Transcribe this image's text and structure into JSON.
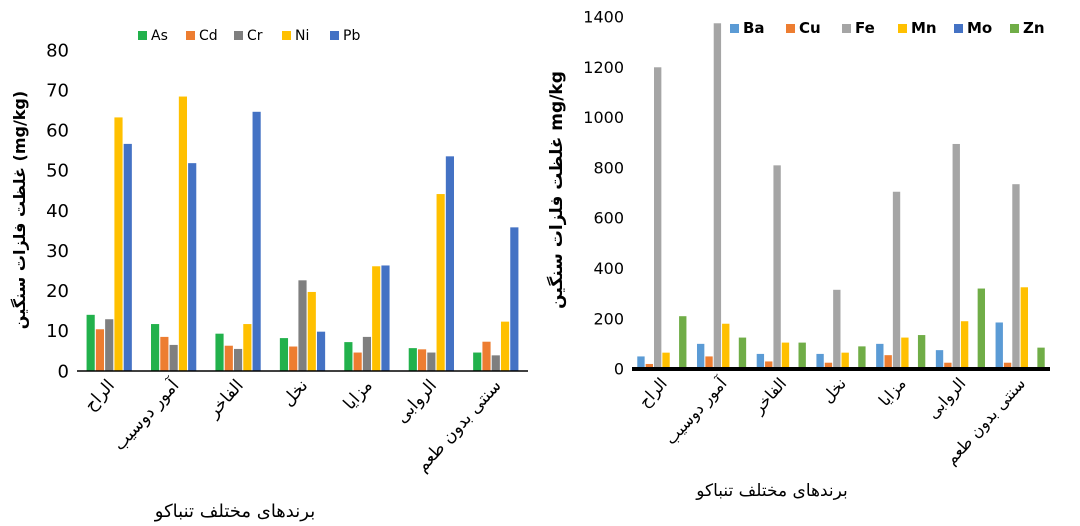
{
  "chart_data": [
    {
      "type": "bar",
      "ylabel": "غلظت فلزات سنگین (mg/kg)",
      "xlabel": "برندهای مختلف تنباکو",
      "ylim": [
        0,
        80
      ],
      "yticks": [
        0,
        10,
        20,
        30,
        40,
        50,
        60,
        70,
        80
      ],
      "legend_position": "top",
      "grid": false,
      "categories": [
        "الراح",
        "آمور دوسیب",
        "الفاخر",
        "نخل",
        "مزایا",
        "الروابی",
        "سنتی بدون طعم"
      ],
      "series": [
        {
          "name": "As",
          "color": "#22b14c",
          "values": [
            14,
            11.7,
            9.3,
            8.2,
            7.2,
            5.7,
            4.6
          ]
        },
        {
          "name": "Cd",
          "color": "#ed7d31",
          "values": [
            10.4,
            8.5,
            6.3,
            6.1,
            4.6,
            5.4,
            7.3
          ]
        },
        {
          "name": "Cr",
          "color": "#7f7f7f",
          "values": [
            12.9,
            6.5,
            5.5,
            22.6,
            8.5,
            4.6,
            3.9
          ]
        },
        {
          "name": "Ni",
          "color": "#ffc000",
          "values": [
            63.2,
            68.4,
            11.7,
            19.7,
            26.1,
            44.1,
            12.3
          ]
        },
        {
          "name": "Pb",
          "color": "#4472c4",
          "values": [
            56.6,
            51.8,
            64.6,
            9.8,
            26.3,
            53.5,
            35.8
          ]
        }
      ]
    },
    {
      "type": "bar",
      "ylabel": "غلظت فلزات سنگین mg/kg",
      "xlabel": "برندهای مختلف تنباکو",
      "ylim": [
        0,
        1400
      ],
      "yticks": [
        0,
        200,
        400,
        600,
        800,
        1000,
        1200,
        1400
      ],
      "legend_position": "top",
      "grid": false,
      "categories": [
        "الراح",
        "آمور دوسیب",
        "الفاخر",
        "نخل",
        "مزایا",
        "الروابی",
        "سنتی بدون طعم"
      ],
      "series": [
        {
          "name": "Ba",
          "color": "#5b9bd5",
          "values": [
            50,
            100,
            60,
            60,
            100,
            75,
            185
          ]
        },
        {
          "name": "Cu",
          "color": "#ed7d31",
          "values": [
            20,
            50,
            30,
            25,
            55,
            25,
            25
          ]
        },
        {
          "name": "Fe",
          "color": "#a5a5a5",
          "values": [
            1200,
            1375,
            810,
            315,
            705,
            895,
            735
          ]
        },
        {
          "name": "Mn",
          "color": "#ffc000",
          "values": [
            65,
            180,
            105,
            65,
            125,
            190,
            325
          ]
        },
        {
          "name": "Mo",
          "color": "#4472c4",
          "values": [
            8,
            8,
            8,
            8,
            8,
            8,
            8
          ]
        },
        {
          "name": "Zn",
          "color": "#70ad47",
          "values": [
            210,
            125,
            105,
            90,
            135,
            320,
            85
          ]
        }
      ]
    }
  ]
}
